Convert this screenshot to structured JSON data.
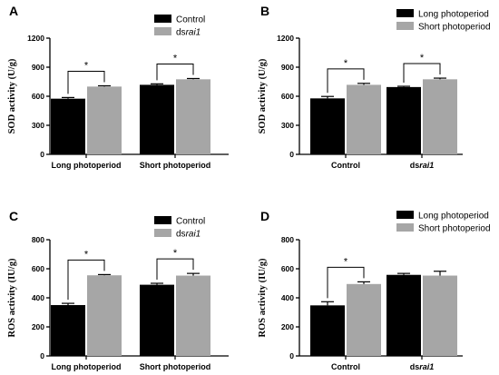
{
  "colors": {
    "control": "#000000",
    "treated": "#a6a6a6",
    "axis": "#000000"
  },
  "chart_data": [
    {
      "panel": "A",
      "type": "bar",
      "ylabel": "SOD activity (U/g)",
      "ylim": [
        0,
        1200
      ],
      "yticks": [
        0,
        300,
        600,
        900,
        1200
      ],
      "categories": [
        "Long photoperiod",
        "Short photoperiod"
      ],
      "category_italic_suffix": [
        "",
        ""
      ],
      "series": [
        {
          "name": "Control",
          "name_prefix": "Control",
          "name_italic": "",
          "color_key": "control",
          "values": [
            575,
            718
          ],
          "errors": [
            12,
            10
          ]
        },
        {
          "name": "dsrai1",
          "name_prefix": "ds",
          "name_italic": "rai1",
          "color_key": "treated",
          "values": [
            700,
            775
          ],
          "errors": [
            8,
            8
          ]
        }
      ],
      "significance": [
        {
          "category": 0,
          "label": "*"
        },
        {
          "category": 1,
          "label": "*"
        }
      ],
      "legend": "top-right"
    },
    {
      "panel": "B",
      "type": "bar",
      "ylabel": "SOD activity (U/g)",
      "ylim": [
        0,
        1200
      ],
      "yticks": [
        0,
        300,
        600,
        900,
        1200
      ],
      "categories": [
        "Control",
        "ds"
      ],
      "category_italic_suffix": [
        "",
        "rai1"
      ],
      "series": [
        {
          "name": "Long photoperiod",
          "name_prefix": "Long photoperiod",
          "name_italic": "",
          "color_key": "control",
          "values": [
            578,
            695
          ],
          "errors": [
            20,
            8
          ]
        },
        {
          "name": "Short photoperiod",
          "name_prefix": "Short photoperiod",
          "name_italic": "",
          "color_key": "treated",
          "values": [
            718,
            775
          ],
          "errors": [
            15,
            12
          ]
        }
      ],
      "significance": [
        {
          "category": 0,
          "label": "*"
        },
        {
          "category": 1,
          "label": "*"
        }
      ],
      "legend": "top-right"
    },
    {
      "panel": "C",
      "type": "bar",
      "ylabel": "ROS activity (IU/g)",
      "ylim": [
        0,
        800
      ],
      "yticks": [
        0,
        200,
        400,
        600,
        800
      ],
      "categories": [
        "Long photoperiod",
        "Short photoperiod"
      ],
      "category_italic_suffix": [
        "",
        ""
      ],
      "series": [
        {
          "name": "Control",
          "name_prefix": "Control",
          "name_italic": "",
          "color_key": "control",
          "values": [
            350,
            490
          ],
          "errors": [
            12,
            10
          ]
        },
        {
          "name": "dsrai1",
          "name_prefix": "ds",
          "name_italic": "rai1",
          "color_key": "treated",
          "values": [
            555,
            553
          ],
          "errors": [
            5,
            15
          ]
        }
      ],
      "significance": [
        {
          "category": 0,
          "label": "*"
        },
        {
          "category": 1,
          "label": "*"
        }
      ],
      "legend": "top-right"
    },
    {
      "panel": "D",
      "type": "bar",
      "ylabel": "ROS activity (IU/g)",
      "ylim": [
        0,
        800
      ],
      "yticks": [
        0,
        200,
        400,
        600,
        800
      ],
      "categories": [
        "Control",
        "ds"
      ],
      "category_italic_suffix": [
        "",
        "rai1"
      ],
      "series": [
        {
          "name": "Long photoperiod",
          "name_prefix": "Long photoperiod",
          "name_italic": "",
          "color_key": "control",
          "values": [
            348,
            558
          ],
          "errors": [
            25,
            10
          ]
        },
        {
          "name": "Short photoperiod",
          "name_prefix": "Short photoperiod",
          "name_italic": "",
          "color_key": "treated",
          "values": [
            495,
            553
          ],
          "errors": [
            15,
            30
          ]
        }
      ],
      "significance": [
        {
          "category": 0,
          "label": "*"
        }
      ],
      "legend": "top-right"
    }
  ]
}
